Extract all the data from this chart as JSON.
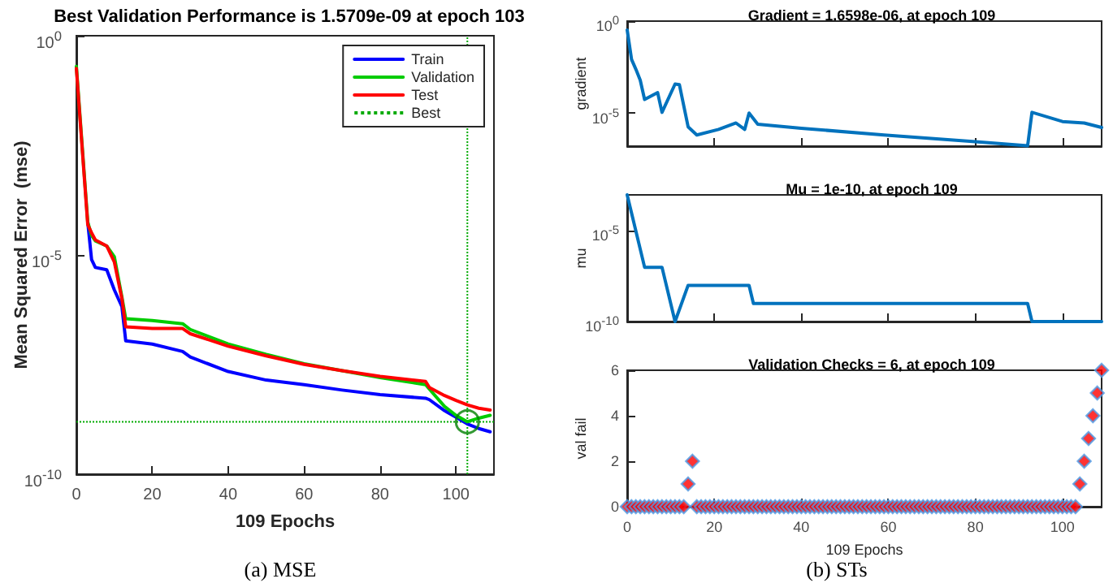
{
  "chart_data": [
    {
      "type": "line",
      "title": "Best Validation Performance is 1.5709e-09 at epoch 103",
      "xlabel": "109 Epochs",
      "ylabel": "Mean Squared Error  (mse)",
      "log": "y",
      "legend": "top right",
      "annotations": [
        "(a) MSE"
      ],
      "x": [
        0,
        3,
        4,
        5,
        8,
        10,
        12,
        13,
        20,
        28,
        30,
        40,
        50,
        60,
        70,
        80,
        92,
        93,
        97,
        100,
        103,
        106,
        109
      ],
      "xlim": [
        0,
        110
      ],
      "xticks": [
        0,
        20,
        40,
        60,
        80,
        100
      ],
      "ylim": [
        1e-10,
        1
      ],
      "yticks": [
        {
          "value": 1,
          "label": "10$^{0}$"
        },
        {
          "value": 1e-05,
          "label": "10$^{-5}$"
        },
        {
          "value": 1e-10,
          "label": "10$^{-10}$"
        }
      ],
      "series": [
        {
          "name": "Train",
          "color": "#0000ff",
          "values": [
            null,
            5.6e-05,
            7.9e-06,
            5.2e-06,
            4.6e-06,
            1.6e-06,
            6.6e-07,
            1.1e-07,
            9.3e-08,
            6.3e-08,
            4.7e-08,
            2.2e-08,
            1.4e-08,
            1.1e-08,
            8.3e-09,
            6.5e-09,
            5.4e-09,
            5e-09,
            2.8e-09,
            2e-09,
            1.4e-09,
            1.1e-09,
            9.3e-10
          ]
        },
        {
          "name": "Validation",
          "color": "#00cc00",
          "values": [
            0.2,
            5.6e-05,
            2.8e-05,
            2.1e-05,
            1.6e-05,
            9.1e-06,
            1.1e-06,
            3.5e-07,
            3.2e-07,
            2.7e-07,
            2e-07,
            9.3e-08,
            5.4e-08,
            3.3e-08,
            2.3e-08,
            1.6e-08,
            1.1e-08,
            8.7e-09,
            3.5e-09,
            2.2e-09,
            1.5709e-09,
            1.9e-09,
            2.2e-09
          ]
        },
        {
          "name": "Test",
          "color": "#ff0000",
          "values": [
            0.18,
            4.9e-05,
            3.2e-05,
            2.2e-05,
            1.6e-05,
            6.9e-06,
            1e-06,
            2.3e-07,
            2.1e-07,
            2.1e-07,
            1.6e-07,
            8.3e-08,
            5e-08,
            3.2e-08,
            2.3e-08,
            1.7e-08,
            1.3e-08,
            9.5e-09,
            6.2e-09,
            4.8e-09,
            3.8e-09,
            3.2e-09,
            2.9e-09
          ]
        },
        {
          "type": "scatter",
          "marker": "circle",
          "color": "#008000",
          "x": [
            103
          ],
          "values": [
            1.5709e-09
          ]
        }
      ],
      "ref_lines": [
        {
          "axis": "x",
          "value": 103,
          "label": "Best",
          "color": "#00aa00",
          "line_style": "dotted"
        },
        {
          "axis": "y",
          "value": 1.5709e-09,
          "label": null,
          "color": "#00aa00",
          "line_style": "dotted"
        }
      ]
    },
    {
      "type": "line",
      "title": "Gradient = 1.6598e-06, at epoch 109",
      "ylabel": "gradient",
      "log": "y",
      "tick_labels": "y",
      "x": [
        0,
        1,
        2,
        3,
        4,
        7,
        8,
        11,
        12,
        14,
        16,
        21,
        25,
        27,
        28,
        30,
        40,
        59,
        80,
        92,
        93,
        100,
        105,
        109
      ],
      "xlim": [
        0,
        109
      ],
      "xticks": [
        0,
        20,
        40,
        60,
        80,
        100
      ],
      "ylim": [
        1.6e-07,
        1
      ],
      "yticks": [
        {
          "value": 1,
          "label": "10$^{0}$"
        },
        {
          "value": 1e-05,
          "label": "10$^{-5}$"
        }
      ],
      "series": [
        {
          "color": "#0072bd",
          "values": [
            0.33,
            0.0083,
            0.0024,
            0.00062,
            5.5e-05,
            0.00013,
            1.1e-05,
            0.00038,
            0.00035,
            1.8e-06,
            6.5e-07,
            1.3e-06,
            2.9e-06,
            1.3e-06,
            1e-05,
            2.5e-06,
            1.5e-06,
            6.5e-07,
            2.8e-07,
            1.7e-07,
            1.1e-05,
            3.5e-06,
            2.9e-06,
            1.6598e-06
          ]
        }
      ]
    },
    {
      "type": "line",
      "title": "Mu = 1e-10, at epoch 109",
      "ylabel": "mu",
      "log": "y",
      "tick_labels": "y",
      "x": [
        0,
        4,
        8,
        11,
        14,
        28,
        29,
        92,
        93,
        109
      ],
      "xlim": [
        0,
        109
      ],
      "xticks": [
        0,
        20,
        40,
        60,
        80,
        100
      ],
      "ylim": [
        1e-10,
        0.001
      ],
      "yticks": [
        {
          "value": 1e-05,
          "label": "10$^{-5}$"
        },
        {
          "value": 1e-10,
          "label": "10$^{-10}$"
        }
      ],
      "series": [
        {
          "color": "#0072bd",
          "values": [
            0.001,
            1e-07,
            1e-07,
            1e-10,
            1e-08,
            1e-08,
            1e-09,
            1e-09,
            1e-10,
            1e-10
          ]
        }
      ]
    },
    {
      "type": "scatter",
      "title": "Validation Checks = 6, at epoch 109",
      "xlabel": "109 Epochs",
      "ylabel": "val fail",
      "marker": "diamond",
      "annotations": [
        "(b) STs"
      ],
      "x": [
        0,
        1,
        2,
        3,
        4,
        5,
        6,
        7,
        8,
        9,
        10,
        11,
        12,
        13,
        14,
        15,
        16,
        17,
        18,
        19,
        20,
        21,
        22,
        23,
        24,
        25,
        26,
        27,
        28,
        29,
        30,
        31,
        32,
        33,
        34,
        35,
        36,
        37,
        38,
        39,
        40,
        41,
        42,
        43,
        44,
        45,
        46,
        47,
        48,
        49,
        50,
        51,
        52,
        53,
        54,
        55,
        56,
        57,
        58,
        59,
        60,
        61,
        62,
        63,
        64,
        65,
        66,
        67,
        68,
        69,
        70,
        71,
        72,
        73,
        74,
        75,
        76,
        77,
        78,
        79,
        80,
        81,
        82,
        83,
        84,
        85,
        86,
        87,
        88,
        89,
        90,
        91,
        92,
        93,
        94,
        95,
        96,
        97,
        98,
        99,
        100,
        101,
        102,
        103,
        104,
        105,
        106,
        107,
        108,
        109
      ],
      "xlim": [
        0,
        109
      ],
      "xticks": [
        0,
        20,
        40,
        60,
        80,
        100
      ],
      "ylim": [
        0,
        6
      ],
      "yticks": [
        0,
        2,
        4,
        6
      ],
      "series": [
        {
          "color": "#ff0000",
          "values": [
            0,
            0,
            0,
            0,
            0,
            0,
            0,
            0,
            0,
            0,
            0,
            0,
            0,
            0,
            1,
            2,
            0,
            0,
            0,
            0,
            0,
            0,
            0,
            0,
            0,
            0,
            0,
            0,
            0,
            0,
            0,
            0,
            0,
            0,
            0,
            0,
            0,
            0,
            0,
            0,
            0,
            0,
            0,
            0,
            0,
            0,
            0,
            0,
            0,
            0,
            0,
            0,
            0,
            0,
            0,
            0,
            0,
            0,
            0,
            0,
            0,
            0,
            0,
            0,
            0,
            0,
            0,
            0,
            0,
            0,
            0,
            0,
            0,
            0,
            0,
            0,
            0,
            0,
            0,
            0,
            0,
            0,
            0,
            0,
            0,
            0,
            0,
            0,
            0,
            0,
            0,
            0,
            0,
            0,
            0,
            0,
            0,
            0,
            0,
            0,
            0,
            0,
            0,
            0,
            1,
            2,
            3,
            4,
            5,
            6
          ]
        }
      ]
    }
  ]
}
